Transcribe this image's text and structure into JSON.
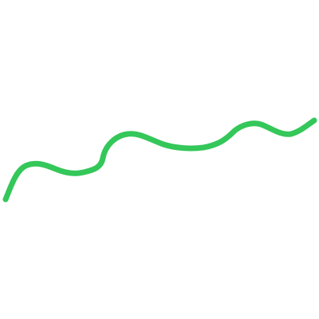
{
  "canvas": {
    "background": "#ffffff"
  },
  "stroke": {
    "shape": "freehand-wavy-line",
    "color": "#34c759"
  }
}
